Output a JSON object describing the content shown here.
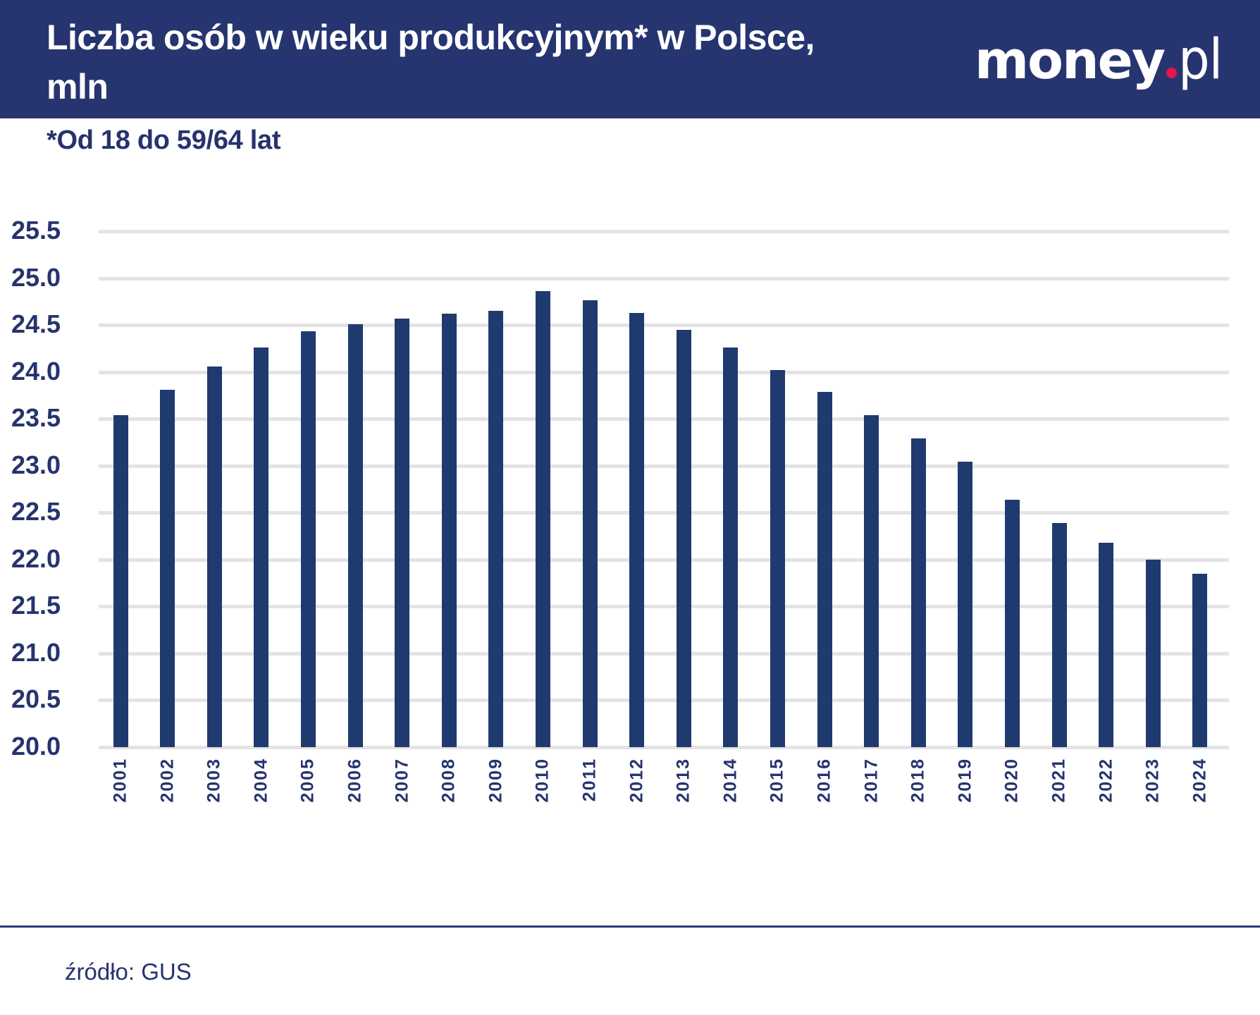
{
  "header": {
    "title_line1": "Liczba osób w wieku produkcyjnym* w Polsce,",
    "title_line2": "mln",
    "logo": {
      "main": "money",
      "suffix": "pl",
      "dot_color": "#e4174a"
    },
    "background_color": "#263570"
  },
  "subtitle": "*Od 18 do 59/64 lat",
  "footer": {
    "source": "źródło: GUS"
  },
  "colors": {
    "bar": "#1f3a6e",
    "text": "#26336e",
    "grid": "#e3e3e3"
  },
  "chart_data": {
    "type": "bar",
    "title": "Liczba osób w wieku produkcyjnym* w Polsce, mln",
    "subtitle": "*Od 18 do 59/64 lat",
    "xlabel": "",
    "ylabel": "",
    "ylim": [
      20.0,
      25.5
    ],
    "yticks": [
      "25.5",
      "25.0",
      "24.5",
      "24.0",
      "23.5",
      "23.0",
      "22.5",
      "22.0",
      "21.5",
      "21.0",
      "20.5",
      "20.0"
    ],
    "grid": true,
    "legend": null,
    "source": "źródło: GUS",
    "categories": [
      "2001",
      "2002",
      "2003",
      "2004",
      "2005",
      "2006",
      "2007",
      "2008",
      "2009",
      "2010",
      "2011",
      "2012",
      "2013",
      "2014",
      "2015",
      "2016",
      "2017",
      "2018",
      "2019",
      "2020",
      "2021",
      "2022",
      "2023",
      "2024"
    ],
    "values": [
      23.54,
      23.81,
      24.06,
      24.26,
      24.43,
      24.51,
      24.57,
      24.62,
      24.65,
      24.86,
      24.76,
      24.63,
      24.45,
      24.26,
      24.02,
      23.79,
      23.54,
      23.29,
      23.04,
      22.64,
      22.39,
      22.18,
      22.0,
      21.85
    ]
  }
}
